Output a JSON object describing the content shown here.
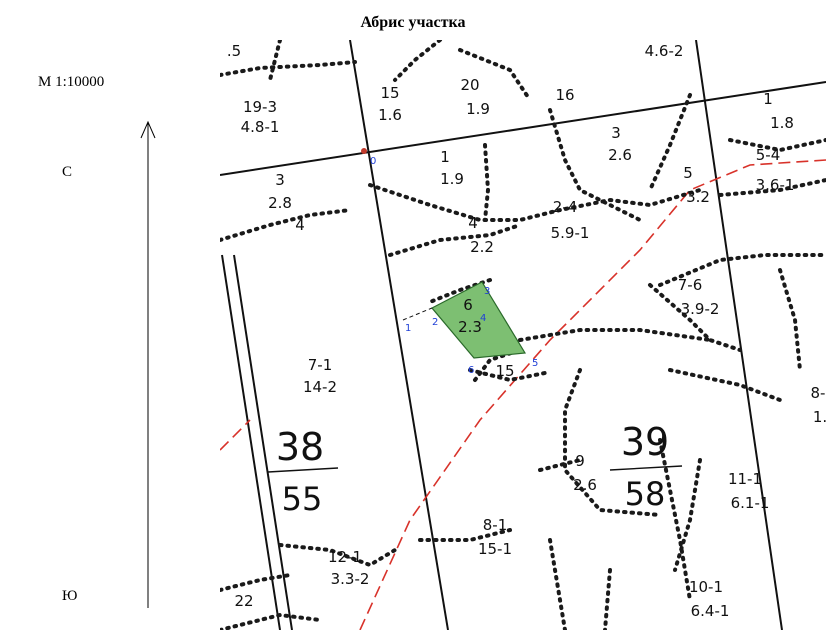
{
  "title": "Абрис участка",
  "scale": "М 1:10000",
  "north_label": "С",
  "south_label": "Ю",
  "quarters": [
    {
      "number": "38",
      "area": "55"
    },
    {
      "number": "39",
      "area": "58"
    }
  ],
  "sections": [
    {
      "top": "19-3",
      "bottom": "4.8-1"
    },
    {
      "top": "15",
      "bottom": "1.6"
    },
    {
      "top": "20",
      "bottom": "1.9"
    },
    {
      "top": "16",
      "bottom": ""
    },
    {
      "top": "4.6-2",
      "bottom": ""
    },
    {
      "top": "1",
      "bottom": "1.8"
    },
    {
      "top": "5-4",
      "bottom": "3.6-1"
    },
    {
      "top": "3",
      "bottom": "2.6"
    },
    {
      "top": "1",
      "bottom": "1.9"
    },
    {
      "top": "5",
      "bottom": "3.2"
    },
    {
      "top": "3",
      "bottom": "2.8"
    },
    {
      "top": "4",
      "bottom": "2.2"
    },
    {
      "top": "2-4",
      "bottom": "5.9-1"
    },
    {
      "top": "6",
      "bottom": "2.3"
    },
    {
      "top": "15",
      "bottom": ""
    },
    {
      "top": "7-6",
      "bottom": "3.9-2"
    },
    {
      "top": "7-1",
      "bottom": "14-2"
    },
    {
      "top": "9",
      "bottom": "2.6"
    },
    {
      "top": "11-1",
      "bottom": "6.1-1"
    },
    {
      "top": "8-1",
      "bottom": "15-1"
    },
    {
      "top": "12-1",
      "bottom": "3.3-2"
    },
    {
      "top": "10-1",
      "bottom": "6.4-1"
    },
    {
      "top": "8-",
      "bottom": "1."
    },
    {
      "top": "22",
      "bottom": ""
    },
    {
      "top": ".5",
      "bottom": ""
    },
    {
      "top": "4",
      "bottom": ""
    }
  ],
  "plot_points": [
    "0",
    "1",
    "2",
    "3",
    "4",
    "5",
    "6"
  ],
  "colors": {
    "plot_fill": "#7dbf72",
    "point_label": "#1f3fd6",
    "road": "#d8322a"
  }
}
